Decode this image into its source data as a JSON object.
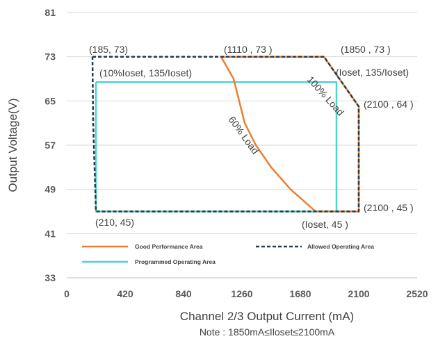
{
  "chart_data": {
    "type": "line",
    "xlabel": "Channel 2/3 Output Current (mA)",
    "ylabel": "Output Voltage(V)",
    "note": "Note :  1850mA≤Iloset≤2100mA",
    "xlim": [
      0,
      2520
    ],
    "ylim": [
      33,
      81
    ],
    "xticks": [
      0,
      420,
      840,
      1260,
      1680,
      2100,
      2520
    ],
    "yticks": [
      33,
      41,
      49,
      57,
      65,
      73,
      81
    ],
    "grid": "horizontal",
    "legend_position": "bottom-left inside plot",
    "series": [
      {
        "name": "Good Performance Area",
        "color": "#ED7D31",
        "style": "solid",
        "x": [
          1110,
          1850,
          2100,
          2100,
          1980,
          1790,
          1610,
          1470,
          1360,
          1280,
          1240,
          1200,
          1110
        ],
        "y": [
          73,
          73,
          64,
          45,
          45,
          45,
          49,
          53,
          57,
          61,
          65,
          69,
          73
        ]
      },
      {
        "name": "Allowed Operating Area",
        "color": "#1F3B4D",
        "style": "dashed",
        "x": [
          185,
          1110,
          1850,
          2100,
          2100,
          210,
          205,
          190,
          185
        ],
        "y": [
          73,
          73,
          73,
          64,
          45,
          45,
          49,
          61,
          73
        ]
      },
      {
        "name": "Programmed Operating Area",
        "color": "#4DD4CF",
        "style": "solid",
        "x": [
          210,
          1940,
          1940,
          210,
          210
        ],
        "y": [
          68.4,
          68.4,
          45,
          45,
          68.4
        ]
      }
    ],
    "annotations": [
      {
        "text": "(185, 73)"
      },
      {
        "text": "(1110 , 73 )"
      },
      {
        "text": "(1850 , 73 )"
      },
      {
        "text": "(10%Ioset, 135/Ioset)"
      },
      {
        "text": "(Ioset, 135/Ioset)"
      },
      {
        "text": "(2100 , 64 )"
      },
      {
        "text": "(2100 , 45 )"
      },
      {
        "text": "(210, 45)"
      },
      {
        "text": "(Ioset, 45 )"
      },
      {
        "text": "60% Load"
      },
      {
        "text": "100% Load"
      }
    ]
  }
}
